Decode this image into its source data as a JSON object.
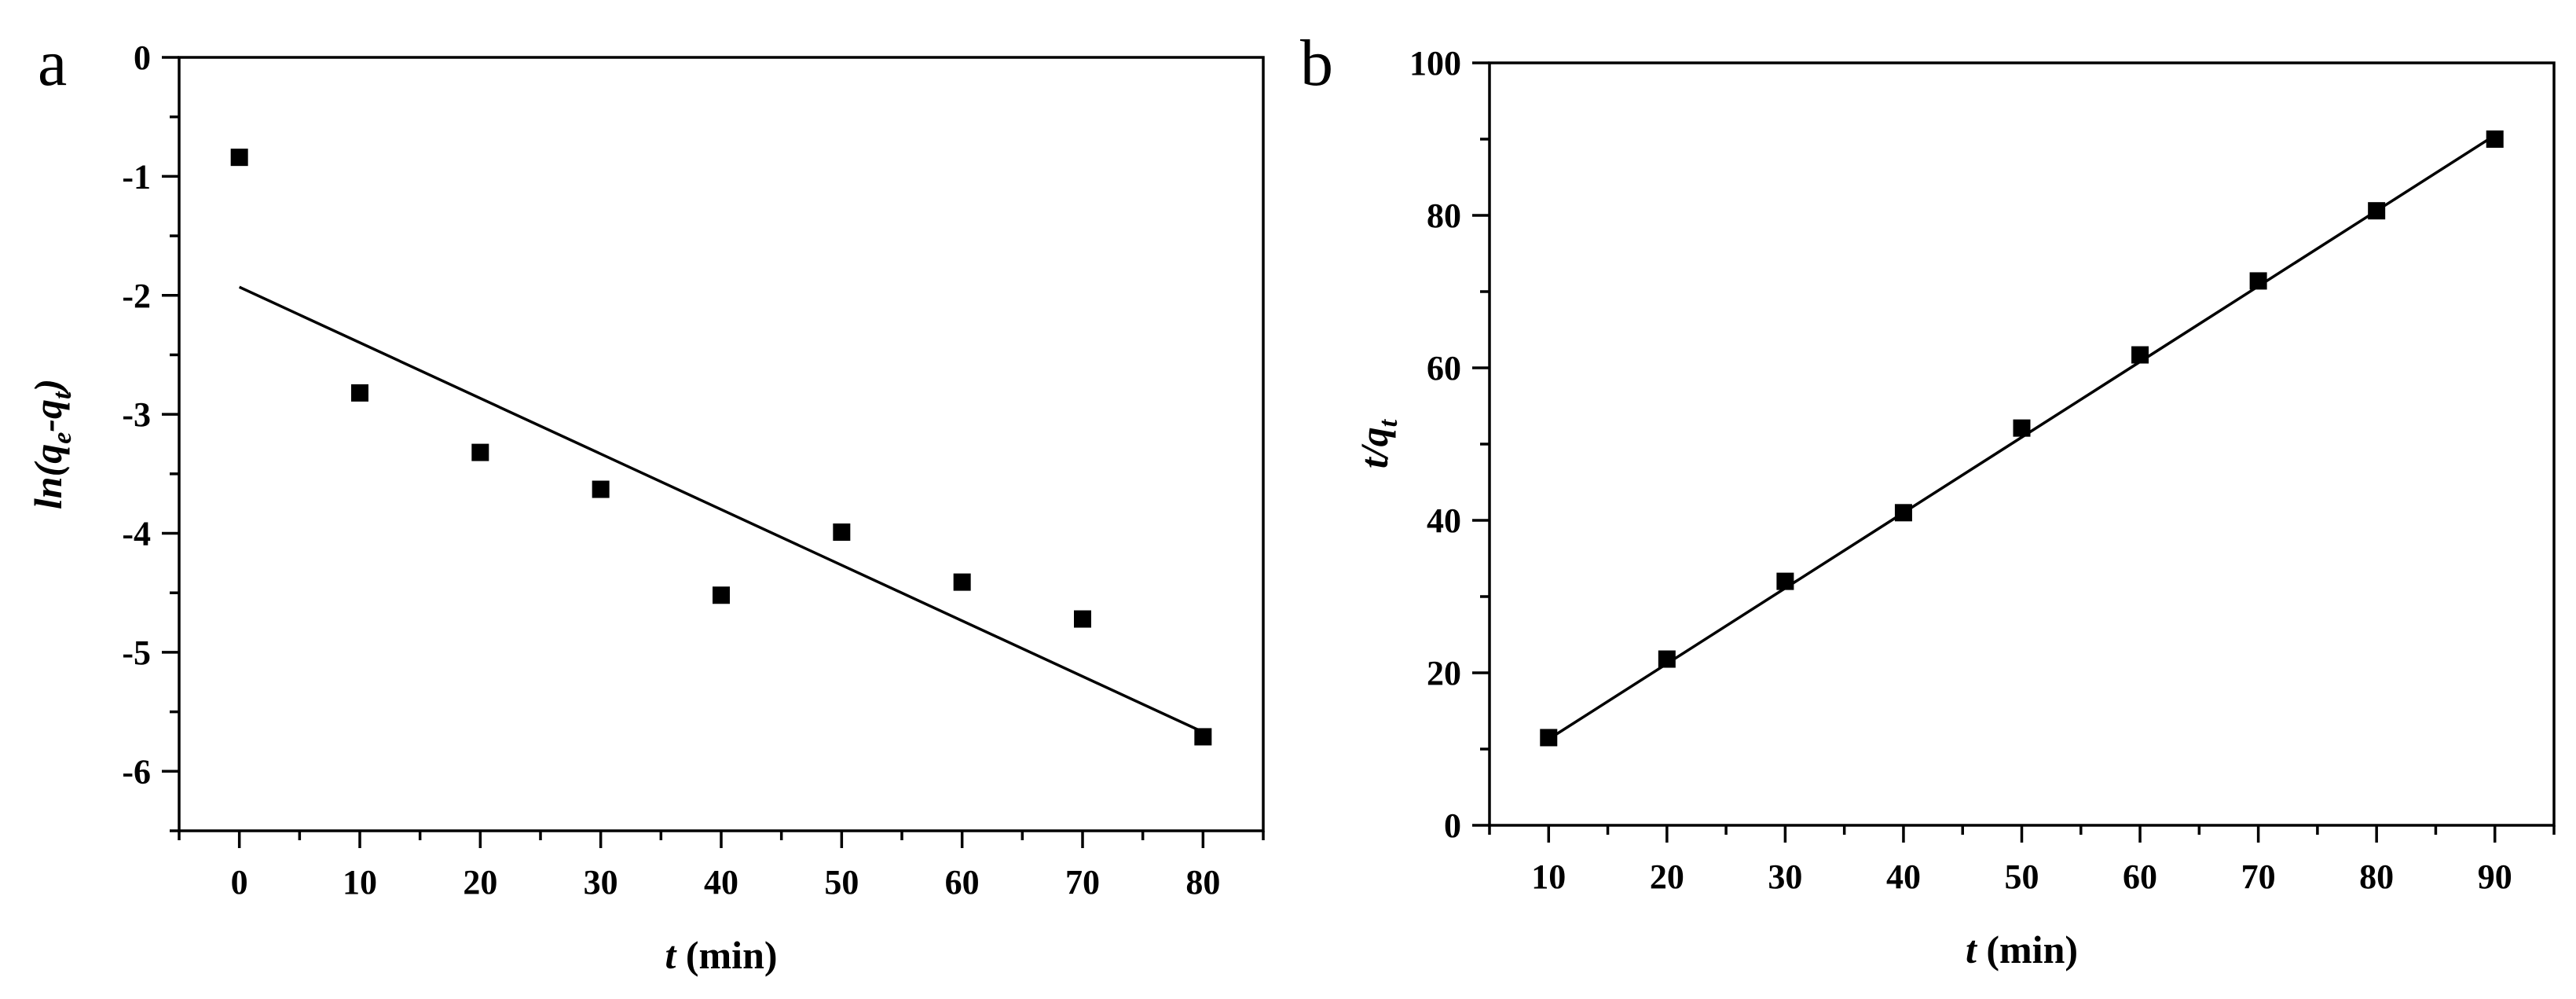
{
  "chart_data": [
    {
      "panel": "a",
      "type": "scatter",
      "xlabel_italic": "t",
      "xlabel_rest": " (min)",
      "ylabel": "ln(qₑ-qₜ)",
      "ylabel_parts": {
        "prefix": "ln(q",
        "sub1": "e",
        "mid": "-q",
        "sub2": "t",
        "suffix": ")"
      },
      "xlim": [
        -5,
        85
      ],
      "ylim": [
        -6.5,
        0
      ],
      "xticks": [
        0,
        10,
        20,
        30,
        40,
        50,
        60,
        70,
        80
      ],
      "xtick_labels": [
        "0",
        "10",
        "20",
        "30",
        "40",
        "50",
        "60",
        "70",
        "80"
      ],
      "yticks": [
        0,
        -1,
        -2,
        -3,
        -4,
        -5,
        -6
      ],
      "ytick_labels": [
        "0",
        "-1",
        "-2",
        "-3",
        "-4",
        "-5",
        "-6"
      ],
      "series": [
        {
          "x": [
            0,
            10,
            20,
            30,
            40,
            50,
            60,
            70,
            80
          ],
          "y": [
            -0.84,
            -2.82,
            -3.32,
            -3.63,
            -4.52,
            -3.99,
            -4.41,
            -4.72,
            -5.71
          ]
        }
      ],
      "fit_line": {
        "x": [
          0,
          80
        ],
        "y": [
          -1.93,
          -5.67
        ]
      },
      "grid": false,
      "marker": "square"
    },
    {
      "panel": "b",
      "type": "scatter",
      "xlabel_italic": "t",
      "xlabel_rest": " (min)",
      "ylabel": "t/qₜ",
      "ylabel_parts": {
        "prefix": "t/q",
        "sub": "t"
      },
      "xlim": [
        5,
        95
      ],
      "ylim": [
        0,
        100
      ],
      "xticks": [
        10,
        20,
        30,
        40,
        50,
        60,
        70,
        80,
        90
      ],
      "xtick_labels": [
        "10",
        "20",
        "30",
        "40",
        "50",
        "60",
        "70",
        "80",
        "90"
      ],
      "yticks": [
        0,
        20,
        40,
        60,
        80,
        100
      ],
      "ytick_labels": [
        "0",
        "20",
        "40",
        "60",
        "80",
        "100"
      ],
      "series": [
        {
          "x": [
            10,
            20,
            30,
            40,
            50,
            60,
            70,
            80,
            90
          ],
          "y": [
            11.5,
            21.8,
            32.0,
            41.0,
            52.1,
            61.7,
            71.4,
            80.6,
            90.0
          ]
        }
      ],
      "fit_line": {
        "x": [
          10,
          90
        ],
        "y": [
          11.3,
          90.5
        ]
      },
      "grid": false,
      "marker": "square"
    }
  ]
}
